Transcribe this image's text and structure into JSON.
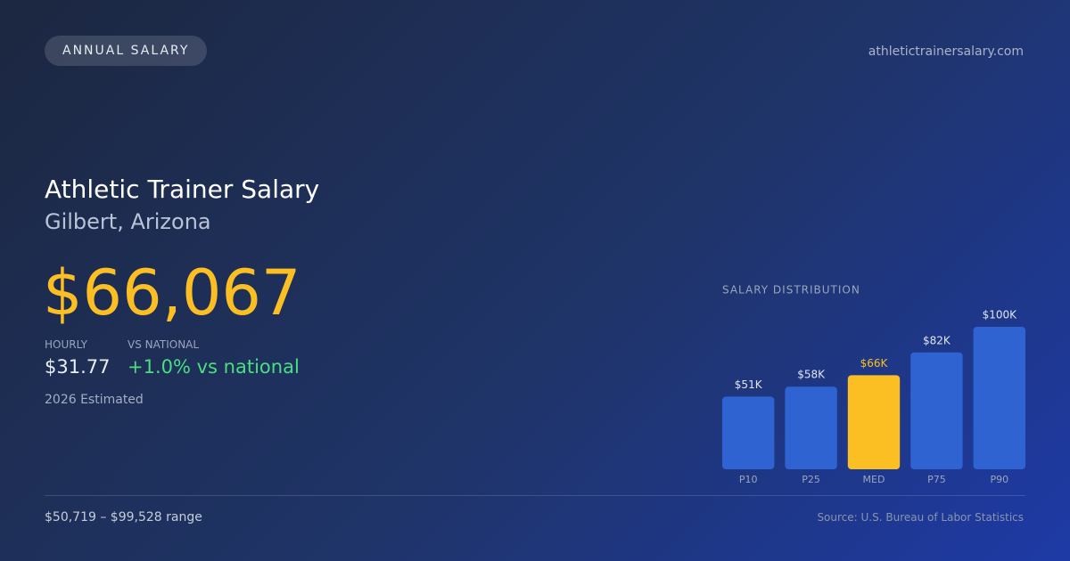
{
  "badge": "ANNUAL SALARY",
  "site": "athletictrainersalary.com",
  "title": "Athletic Trainer Salary",
  "subtitle": "Gilbert, Arizona",
  "salary": "$66,067",
  "stats": [
    {
      "label": "HOURLY",
      "value": "$31.77"
    },
    {
      "label": "VS NATIONAL",
      "value": "+1.0% vs national"
    }
  ],
  "note": "2026 Estimated",
  "range": "$50,719 – $99,528 range",
  "source": "Source: U.S. Bureau of Labor Statistics",
  "chart_data": {
    "type": "bar",
    "title": "SALARY DISTRIBUTION",
    "categories": [
      "P10",
      "P25",
      "MED",
      "P75",
      "P90"
    ],
    "values": [
      51,
      58,
      66,
      82,
      100
    ],
    "value_labels": [
      "$51K",
      "$58K",
      "$66K",
      "$82K",
      "$100K"
    ],
    "colors": [
      "#2f63d2",
      "#2f63d2",
      "#fbbf24",
      "#2f63d2",
      "#2f63d2"
    ]
  }
}
